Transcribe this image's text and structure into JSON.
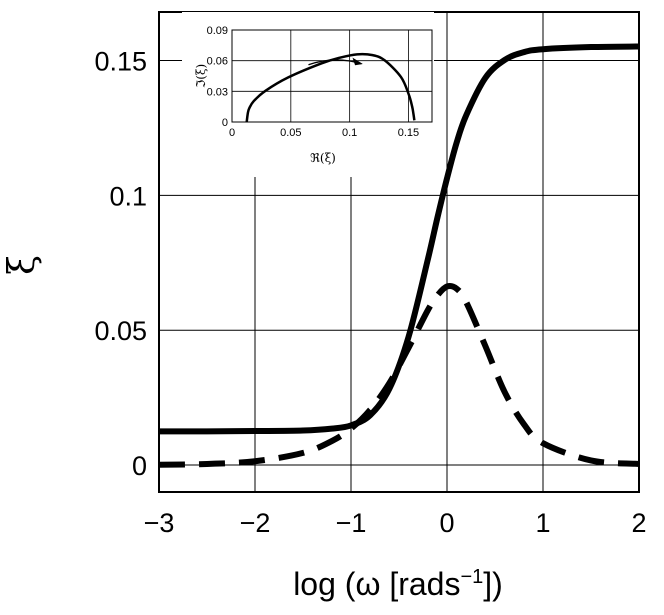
{
  "chart_data": [
    {
      "type": "line",
      "xlabel_prefix": "log (ω [rads",
      "xlabel_sup": "−1",
      "xlabel_suffix": "])",
      "ylabel": "ξ",
      "xlim": [
        -3,
        2
      ],
      "ylim": [
        -0.01,
        0.168
      ],
      "grid": true,
      "x_ticks": [
        -3,
        -2,
        -1,
        0,
        1,
        2
      ],
      "x_tick_labels": [
        "−3",
        "−2",
        "−1",
        "0",
        "1",
        "2"
      ],
      "y_ticks": [
        0,
        0.05,
        0.1,
        0.15
      ],
      "y_tick_labels": [
        "0",
        "0.05",
        "0.1",
        "0.15"
      ],
      "series": [
        {
          "style": "solid",
          "color": "#000000",
          "x": [
            -3,
            -2.5,
            -2,
            -1.5,
            -1.2,
            -1,
            -0.8,
            -0.6,
            -0.4,
            -0.2,
            -0.1,
            0,
            0.1,
            0.2,
            0.4,
            0.6,
            0.8,
            1,
            1.5,
            2
          ],
          "y": [
            0.0125,
            0.0125,
            0.0126,
            0.0128,
            0.0135,
            0.0147,
            0.0185,
            0.0283,
            0.0476,
            0.0762,
            0.0917,
            0.1063,
            0.1195,
            0.1297,
            0.1436,
            0.1502,
            0.1531,
            0.1542,
            0.155,
            0.1552
          ]
        },
        {
          "style": "dashed",
          "color": "#000000",
          "x": [
            -3,
            -2.5,
            -2,
            -1.5,
            -1.2,
            -1,
            -0.8,
            -0.6,
            -0.4,
            -0.2,
            -0.1,
            0,
            0.1,
            0.2,
            0.4,
            0.6,
            0.8,
            1,
            1.5,
            2
          ],
          "y": [
            0.0001,
            0.0004,
            0.0014,
            0.0045,
            0.0089,
            0.0135,
            0.0205,
            0.0304,
            0.0435,
            0.0574,
            0.0629,
            0.0662,
            0.0654,
            0.0604,
            0.0441,
            0.0271,
            0.0152,
            0.0081,
            0.0017,
            0.0004
          ]
        }
      ]
    },
    {
      "type": "line",
      "xlabel": "ℜ(ξ)",
      "ylabel": "ℑ(ξ)",
      "xlim": [
        0,
        0.17
      ],
      "ylim": [
        0,
        0.09
      ],
      "grid": true,
      "x_ticks": [
        0,
        0.05,
        0.1,
        0.15
      ],
      "x_tick_labels": [
        "0",
        "0.05",
        "0.1",
        "0.15"
      ],
      "y_ticks": [
        0,
        0.03,
        0.06,
        0.09
      ],
      "y_tick_labels": [
        "0",
        "0.03",
        "0.06",
        "0.09"
      ],
      "series": [
        {
          "style": "solid",
          "color": "#000000",
          "x": [
            0.0125,
            0.0135,
            0.0147,
            0.0185,
            0.0283,
            0.0476,
            0.0762,
            0.0917,
            0.1063,
            0.1195,
            0.1297,
            0.1436,
            0.1502,
            0.1531,
            0.1542,
            0.155
          ],
          "y": [
            0.0001,
            0.0089,
            0.0135,
            0.0205,
            0.0304,
            0.0435,
            0.0574,
            0.0629,
            0.0662,
            0.0654,
            0.0604,
            0.0441,
            0.0271,
            0.0152,
            0.0081,
            0.0017
          ]
        }
      ],
      "arrow": {
        "from": [
          0.065,
          0.056
        ],
        "to": [
          0.11,
          0.057
        ]
      }
    }
  ]
}
